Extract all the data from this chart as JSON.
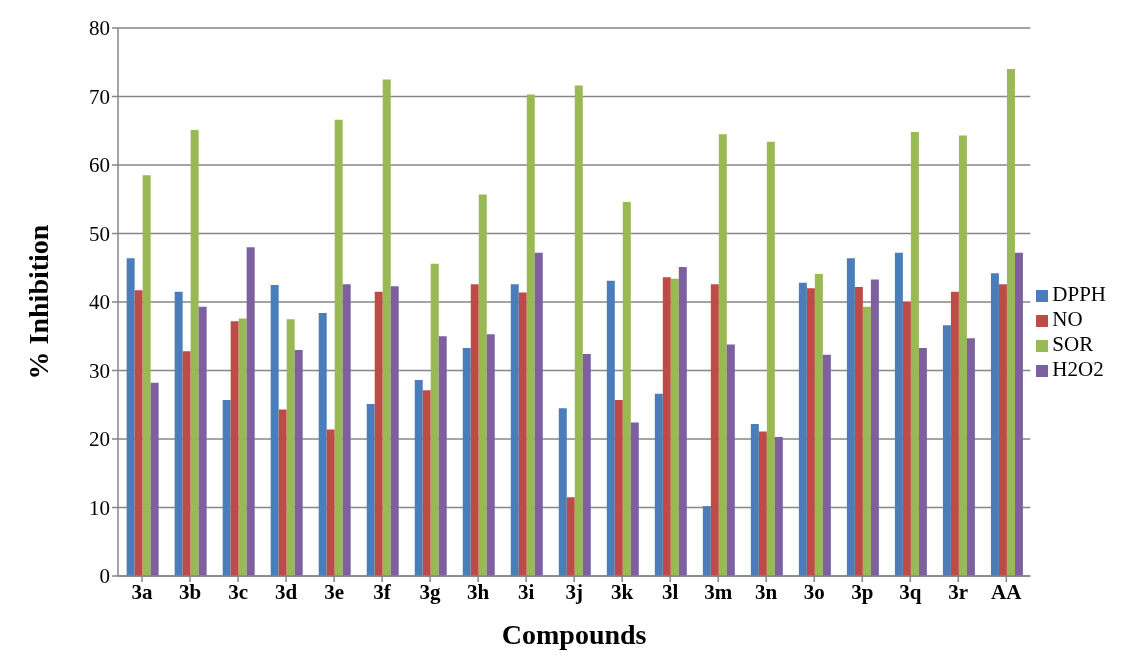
{
  "chart_data": {
    "type": "bar",
    "xlabel": "Compounds",
    "ylabel": "% Inhibition",
    "categories": [
      "3a",
      "3b",
      "3c",
      "3d",
      "3e",
      "3f",
      "3g",
      "3h",
      "3i",
      "3j",
      "3k",
      "3l",
      "3m",
      "3n",
      "3o",
      "3p",
      "3q",
      "3r",
      "AA"
    ],
    "series": [
      {
        "name": "DPPH",
        "color": "#4a7ebb",
        "values": [
          46.4,
          41.5,
          25.7,
          42.5,
          38.4,
          25.1,
          28.6,
          33.3,
          42.6,
          24.5,
          43.1,
          26.6,
          10.2,
          22.2,
          42.8,
          46.4,
          47.2,
          36.6,
          44.2
        ]
      },
      {
        "name": "NO",
        "color": "#be4b48",
        "values": [
          41.7,
          32.8,
          37.2,
          24.3,
          21.4,
          41.5,
          27.1,
          42.6,
          41.4,
          11.5,
          25.7,
          43.6,
          42.6,
          21.1,
          42.0,
          42.2,
          40.0,
          41.5,
          42.6
        ]
      },
      {
        "name": "SOR",
        "color": "#98b954",
        "values": [
          58.5,
          65.1,
          37.6,
          37.5,
          66.6,
          72.5,
          45.6,
          55.7,
          70.3,
          71.6,
          54.6,
          43.4,
          64.5,
          63.4,
          44.1,
          39.3,
          64.8,
          64.3,
          74.0
        ]
      },
      {
        "name": "H2O2",
        "color": "#7d60a0",
        "values": [
          28.2,
          39.3,
          48.0,
          33.0,
          42.6,
          42.3,
          35.0,
          35.3,
          47.2,
          32.4,
          22.4,
          45.1,
          33.8,
          20.3,
          32.3,
          43.3,
          33.3,
          34.7,
          47.2
        ]
      }
    ],
    "ylim": [
      0,
      80
    ],
    "yticks": [
      0,
      10,
      20,
      30,
      40,
      50,
      60,
      70,
      80
    ],
    "grid": "y",
    "legend": "right"
  }
}
